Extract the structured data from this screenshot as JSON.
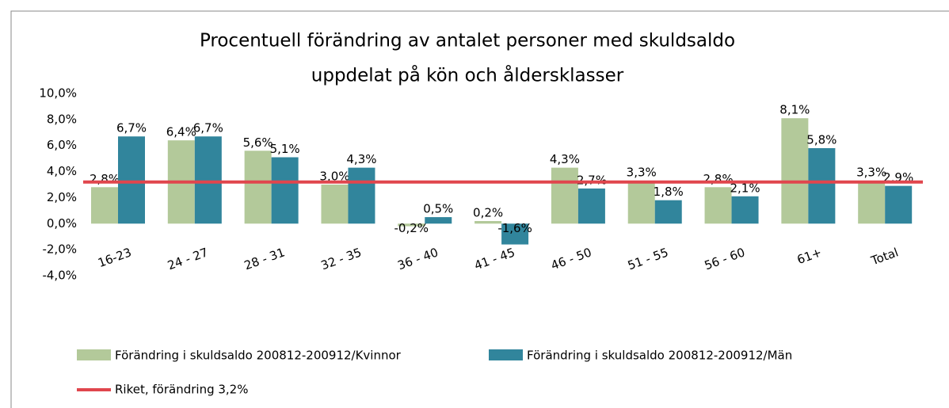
{
  "chart_data": {
    "type": "bar",
    "title": [
      "Procentuell förändring av antalet personer med skuldsaldo",
      "uppdelat på kön och åldersklasser"
    ],
    "categories": [
      "16-23",
      "24 - 27",
      "28 - 31",
      "32 - 35",
      "36 - 40",
      "41 - 45",
      "46 - 50",
      "51 - 55",
      "56 - 60",
      "61+",
      "Total"
    ],
    "series": [
      {
        "name": "Förändring i skuldsaldo 200812-200912/Kvinnor",
        "color": "#b3c99a",
        "values": [
          2.8,
          6.4,
          5.6,
          3.0,
          -0.2,
          0.2,
          4.3,
          3.3,
          2.8,
          8.1,
          3.3
        ],
        "value_labels": [
          "2,8%",
          "6,4%",
          "5,6%",
          "3,0%",
          "-0,2%",
          "0,2%",
          "4,3%",
          "3,3%",
          "2,8%",
          "8,1%",
          "3,3%"
        ]
      },
      {
        "name": "Förändring i skuldsaldo 200812-200912/Män",
        "color": "#31859c",
        "values": [
          6.7,
          6.7,
          5.1,
          4.3,
          0.5,
          -1.6,
          2.7,
          1.8,
          2.1,
          5.8,
          2.9
        ],
        "value_labels": [
          "6,7%",
          "6,7%",
          "5,1%",
          "4,3%",
          "0,5%",
          "-1,6%",
          "2,7%",
          "1,8%",
          "2,1%",
          "5,8%",
          "2,9%"
        ]
      }
    ],
    "reference_line": {
      "name": "Riket, förändring 3,2%",
      "color": "#e0464d",
      "value": 3.2
    },
    "ylim": [
      -4,
      10
    ],
    "yticks": [
      {
        "value": -4,
        "label": "-4,0%"
      },
      {
        "value": -2,
        "label": "-2,0%"
      },
      {
        "value": 0,
        "label": "0,0%"
      },
      {
        "value": 2,
        "label": "2,0%"
      },
      {
        "value": 4,
        "label": "4,0%"
      },
      {
        "value": 6,
        "label": "6,0%"
      },
      {
        "value": 8,
        "label": "8,0%"
      },
      {
        "value": 10,
        "label": "10,0%"
      }
    ]
  }
}
